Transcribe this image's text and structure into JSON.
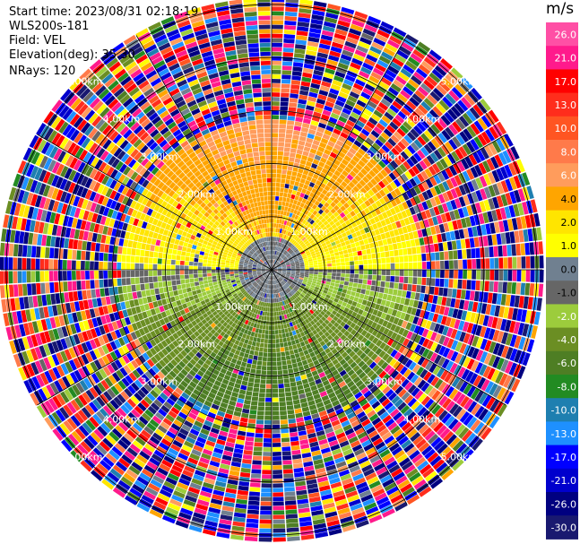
{
  "header": {
    "start_time": "Start time: 2023/08/31 02:18:19",
    "instrument": "WLS200s-181",
    "field": "Field: VEL",
    "elevation": "Elevation(deg): 35.30",
    "nrays": "NRays: 120"
  },
  "colorbar": {
    "unit": "m/s",
    "ticks": [
      "26.0",
      "21.0",
      "17.0",
      "13.0",
      "10.0",
      "8.0",
      "6.0",
      "4.0",
      "2.0",
      "1.0",
      "0.0",
      "-1.0",
      "-2.0",
      "-4.0",
      "-6.0",
      "-8.0",
      "-10.0",
      "-13.0",
      "-17.0",
      "-21.0",
      "-26.0",
      "-30.0"
    ],
    "colors": [
      "#ff4fa5",
      "#ff1a8c",
      "#ff0000",
      "#ff2d1c",
      "#ff5522",
      "#ff7a4a",
      "#ff9c5c",
      "#ffa500",
      "#ffe500",
      "#ffff00",
      "#708090",
      "#666666",
      "#9ccc3c",
      "#6b8e23",
      "#4e7e24",
      "#228b22",
      "#1e7fb0",
      "#1e90ff",
      "#0000ff",
      "#0000cd",
      "#000080",
      "#191970"
    ]
  },
  "chart_data": {
    "type": "heatmap",
    "projection": "polar-ppi",
    "field": "VEL",
    "units": "m/s",
    "n_rays": 120,
    "range_ring_labels": [
      "1.00km",
      "2.00km",
      "3.00km",
      "4.00km",
      "5.00km"
    ],
    "range_rings_km": [
      1,
      2,
      3,
      4,
      5
    ],
    "max_range_km": 5.1,
    "azimuth_lines_deg": [
      0,
      30,
      60,
      90,
      120,
      150,
      180,
      210,
      240,
      270,
      300,
      330
    ],
    "colorbar_range": [
      -30.0,
      26.0
    ],
    "valid_radius_km": 2.8,
    "velocity_pattern": {
      "north_sector_ms": 3.5,
      "south_sector_ms": -2.5,
      "near_center_ms": 0.0
    }
  }
}
